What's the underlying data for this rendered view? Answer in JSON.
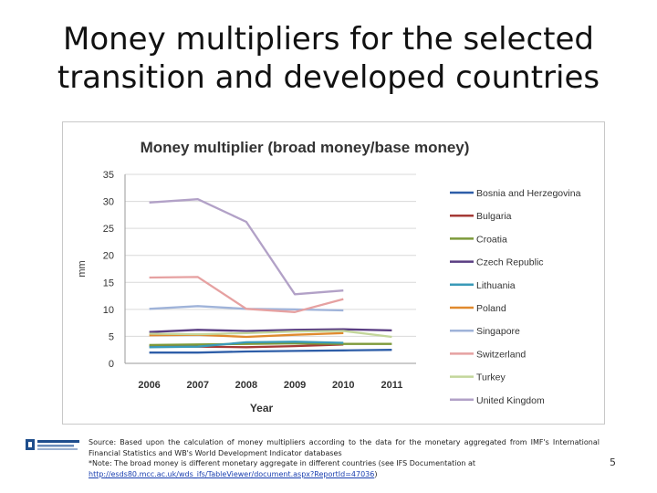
{
  "slide": {
    "title_line1": "Money multipliers for the selected",
    "title_line2": "transition and developed countries",
    "page_number": "5"
  },
  "source": {
    "line1": "Source: Based upon the calculation of money multipliers according to the data for the monetary aggregated from IMF's International Financial Statistics and WB's World Development Indicator databases",
    "line2": "*Note: The broad money is different monetary aggregate in different countries (see IFS Documentation at",
    "link": "http://esds80.mcc.ac.uk/wds_ifs/TableViewer/document.aspx?ReportId=47036",
    "link_suffix": ")"
  },
  "chart_data": {
    "type": "line",
    "title": "Money multiplier (broad money/base money)",
    "xlabel": "Year",
    "ylabel": "mm",
    "x": [
      "2006",
      "2007",
      "2008",
      "2009",
      "2010",
      "2011"
    ],
    "ylim": [
      0,
      35
    ],
    "yticks": [
      0,
      5,
      10,
      15,
      20,
      25,
      30,
      35
    ],
    "grid": true,
    "legend_position": "right",
    "series": [
      {
        "name": "Bosnia and Herzegovina",
        "color": "#2e5ea8",
        "values": [
          2.0,
          2.0,
          2.2,
          2.3,
          2.4,
          2.5
        ]
      },
      {
        "name": "Bulgaria",
        "color": "#a53a36",
        "values": [
          3.2,
          3.1,
          3.0,
          3.2,
          3.5,
          null
        ]
      },
      {
        "name": "Croatia",
        "color": "#7d9a3a",
        "values": [
          3.4,
          3.5,
          3.6,
          3.7,
          3.6,
          3.6
        ]
      },
      {
        "name": "Czech Republic",
        "color": "#5a3d82",
        "values": [
          5.8,
          6.2,
          6.0,
          6.2,
          6.3,
          6.1
        ]
      },
      {
        "name": "Lithuania",
        "color": "#3a9ab8",
        "values": [
          3.0,
          3.1,
          3.9,
          4.0,
          3.8,
          null
        ]
      },
      {
        "name": "Poland",
        "color": "#e08a2e",
        "values": [
          5.2,
          5.3,
          4.9,
          5.3,
          5.6,
          null
        ]
      },
      {
        "name": "Singapore",
        "color": "#9fb3d9",
        "values": [
          10.1,
          10.6,
          10.1,
          10.0,
          9.8,
          null
        ]
      },
      {
        "name": "Switzerland",
        "color": "#e6a1a1",
        "values": [
          15.9,
          16.0,
          10.1,
          9.5,
          11.9,
          null
        ]
      },
      {
        "name": "Turkey",
        "color": "#c3d69b",
        "values": [
          5.5,
          5.4,
          5.6,
          5.9,
          6.0,
          4.9
        ]
      },
      {
        "name": "United Kingdom",
        "color": "#b2a1c7",
        "values": [
          29.8,
          30.4,
          26.2,
          12.8,
          13.5,
          null
        ]
      }
    ]
  },
  "colors": {
    "grid": "#d9d9d9",
    "axis": "#9a9a9a",
    "text": "#333333"
  }
}
